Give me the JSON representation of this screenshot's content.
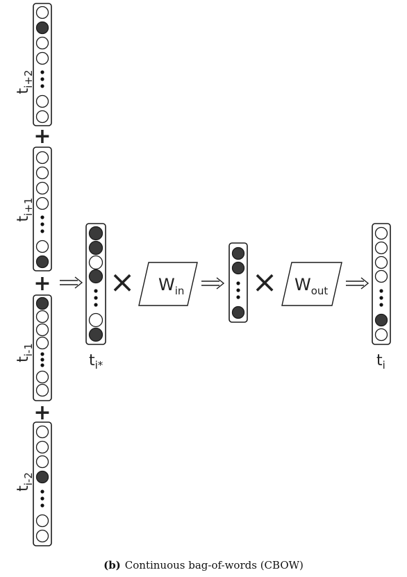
{
  "vectors": {
    "i_plus_2": {
      "label": "t",
      "sub": "i+2",
      "cells": [
        "o",
        "f",
        "o",
        "o",
        "dots",
        "o",
        "o"
      ]
    },
    "i_plus_1": {
      "label": "t",
      "sub": "i+1",
      "cells": [
        "o",
        "o",
        "o",
        "o",
        "dots",
        "o",
        "f"
      ]
    },
    "i_minus_1": {
      "label": "t",
      "sub": "i-1",
      "cells": [
        "f",
        "o",
        "o",
        "o",
        "dots",
        "o",
        "o"
      ]
    },
    "i_minus_2": {
      "label": "t",
      "sub": "i-2",
      "cells": [
        "o",
        "o",
        "o",
        "f",
        "dots",
        "o",
        "o"
      ]
    },
    "sum": {
      "label": "t",
      "sub": "i*",
      "cells": [
        "f",
        "f",
        "o",
        "f",
        "dots",
        "o",
        "f"
      ]
    },
    "hidden": {
      "cells": [
        "f",
        "f",
        "dots",
        "f"
      ]
    },
    "output": {
      "label": "t",
      "sub": "i",
      "cells": [
        "o",
        "o",
        "o",
        "o",
        "dots",
        "f",
        "o"
      ]
    }
  },
  "plus_symbol": "+",
  "times_symbol": "×",
  "w_in": {
    "label": "W",
    "sub": "in"
  },
  "w_out": {
    "label": "W",
    "sub": "out"
  },
  "caption": {
    "tag": "(b)",
    "text": "Continuous bag-of-words (CBOW)"
  },
  "colors": {
    "stroke": "#1a1a1a",
    "filled": "#3a3a3a",
    "background": "#ffffff"
  }
}
